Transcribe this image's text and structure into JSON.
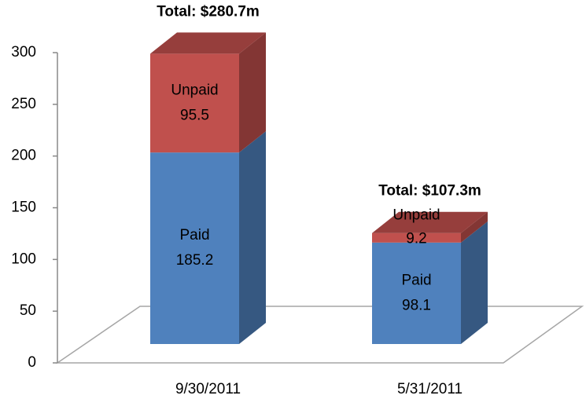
{
  "chart_data": {
    "type": "bar3d_stacked",
    "categories": [
      "9/30/2011",
      "5/31/2011"
    ],
    "series": [
      {
        "name": "Paid",
        "color": "#4f81bd",
        "values": [
          185.2,
          98.1
        ]
      },
      {
        "name": "Unpaid",
        "color": "#c0504d",
        "values": [
          95.5,
          9.2
        ]
      }
    ],
    "annotations": [
      "Total: $280.7m",
      "Total: $107.3m"
    ],
    "ylim": [
      0,
      300
    ],
    "yticks": [
      0,
      50,
      100,
      150,
      200,
      250,
      300
    ]
  }
}
